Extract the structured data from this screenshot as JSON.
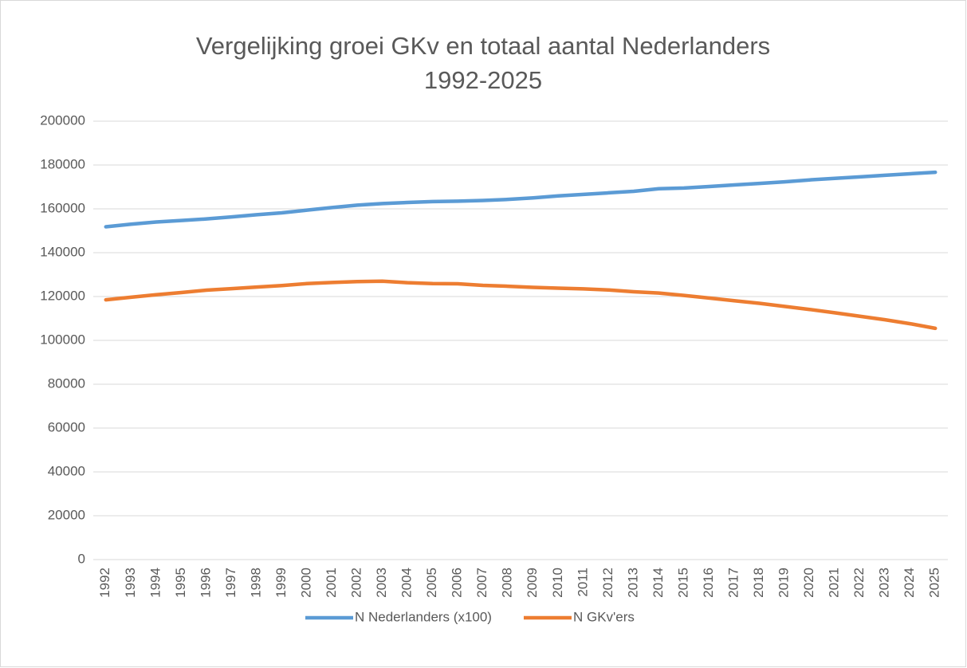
{
  "chart_data": {
    "type": "line",
    "title": "Vergelijking groei GKv en totaal aantal Nederlanders 1992-2025",
    "categories": [
      "1992",
      "1993",
      "1994",
      "1995",
      "1996",
      "1997",
      "1998",
      "1999",
      "2000",
      "2001",
      "2002",
      "2003",
      "2004",
      "2005",
      "2006",
      "2007",
      "2008",
      "2009",
      "2010",
      "2011",
      "2012",
      "2013",
      "2014",
      "2015",
      "2016",
      "2017",
      "2018",
      "2019",
      "2020",
      "2021",
      "2022",
      "2023",
      "2024",
      "2025"
    ],
    "series": [
      {
        "name": "N Nederlanders (x100)",
        "color": "#5b9bd5",
        "values": [
          151800,
          153000,
          154000,
          154700,
          155400,
          156300,
          157300,
          158200,
          159400,
          160600,
          161700,
          162400,
          162900,
          163300,
          163500,
          163800,
          164300,
          165000,
          165900,
          166600,
          167300,
          168000,
          169200,
          169500,
          170200,
          170900,
          171600,
          172300,
          173200,
          173900,
          174600,
          175300,
          176000,
          176700
        ]
      },
      {
        "name": "N GKv'ers",
        "color": "#ed7d31",
        "values": [
          118500,
          119700,
          120800,
          121800,
          122900,
          123600,
          124300,
          125000,
          125900,
          126400,
          126800,
          127000,
          126300,
          125900,
          125800,
          125100,
          124700,
          124200,
          123800,
          123500,
          123000,
          122200,
          121600,
          120500,
          119300,
          118100,
          116900,
          115500,
          114100,
          112600,
          111000,
          109400,
          107600,
          105500
        ]
      }
    ],
    "ylim": [
      0,
      200000
    ],
    "yticks": [
      0,
      20000,
      40000,
      60000,
      80000,
      100000,
      120000,
      140000,
      160000,
      180000,
      200000
    ],
    "grid": true,
    "legend": "bottom"
  }
}
